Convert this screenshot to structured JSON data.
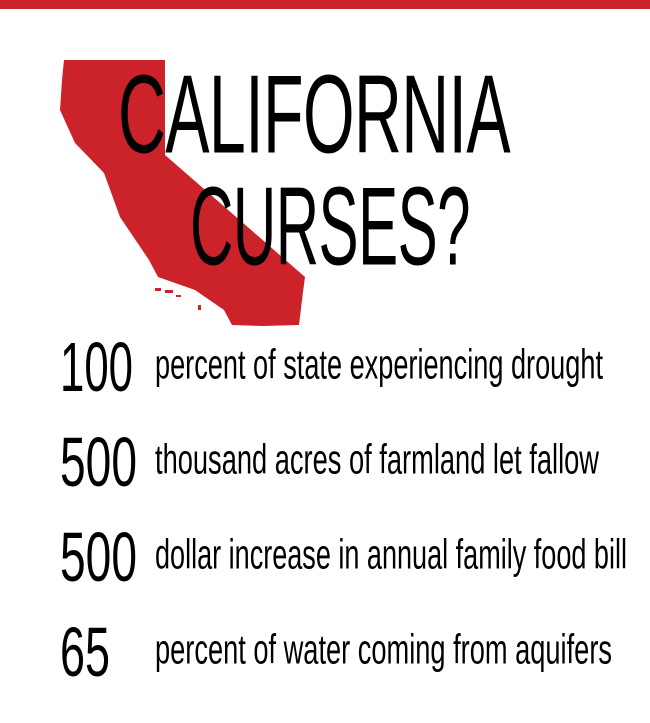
{
  "colors": {
    "accent": "#cc2229",
    "text": "#000000"
  },
  "title": {
    "line1": "CALIFORNIA",
    "line2": "CURSES?"
  },
  "map_icon": "california-state-silhouette",
  "stats": [
    {
      "number": "100",
      "label": "percent of state experiencing drought"
    },
    {
      "number": "500",
      "label": "thousand acres of farmland let fallow"
    },
    {
      "number": "500",
      "label": "dollar increase in annual family food bill"
    },
    {
      "number": "65",
      "label": "percent of water coming from aquifers"
    }
  ]
}
